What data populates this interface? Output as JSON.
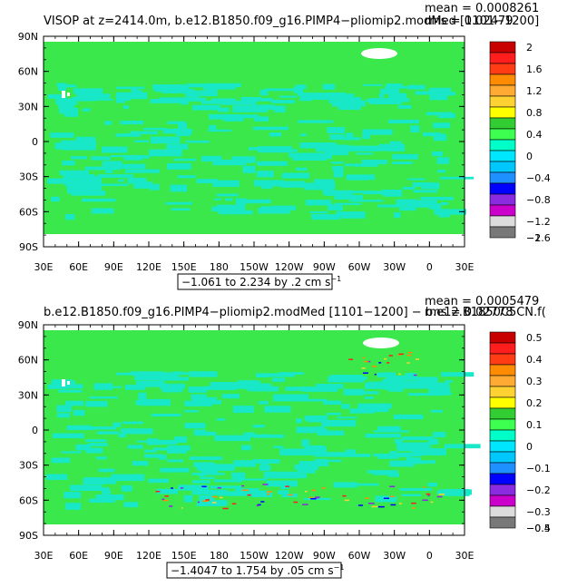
{
  "panels": [
    {
      "title": "VISOP at z=2414.0m, b.e12.B1850.f09_g16.PIMP4−pliomip2.modMed [1101−1200]",
      "mean_label": "mean = 0.0008261",
      "rms_label": "rms = 0.02479",
      "range_note": "−1.061 to 2.234 by .2 cm s",
      "range_unit_exp": "−1",
      "colorbar_labels": [
        "2",
        "1.6",
        "1.2",
        "0.8",
        "0.4",
        "0",
        "−0.4",
        "−0.8",
        "−1.2",
        "−1.6",
        "−2"
      ]
    },
    {
      "title": "b.e12.B1850.f09_g16.PIMP4−pliomip2.modMed [1101−1200] − b.e12.B1850C5CN.f(",
      "mean_label": "mean = 0.0005479",
      "rms_label": "rms = 0.02778",
      "range_note": "−1.4047 to 1.754 by .05 cm s",
      "range_unit_exp": "−1",
      "colorbar_labels": [
        "0.5",
        "0.4",
        "0.3",
        "0.2",
        "0.1",
        "0",
        "−0.1",
        "−0.2",
        "−0.3",
        "−0.4",
        "−0.5"
      ]
    }
  ],
  "axes": {
    "lat_labels": [
      "90N",
      "60N",
      "30N",
      "0",
      "30S",
      "60S",
      "90S"
    ],
    "lon_labels": [
      "30E",
      "60E",
      "90E",
      "120E",
      "150E",
      "180",
      "150W",
      "120W",
      "90W",
      "60W",
      "30W",
      "0",
      "30E"
    ]
  },
  "colors": {
    "colorbar": [
      "#c80000",
      "#ff1e1e",
      "#ff3c14",
      "#ff8c00",
      "#ffaa32",
      "#ffd232",
      "#ffff00",
      "#32cd32",
      "#3cff50",
      "#00ffc8",
      "#00e6ff",
      "#00c8ff",
      "#1e90ff",
      "#0000ff",
      "#8a2be2",
      "#cc00cc",
      "#dcdcdc",
      "#787878"
    ],
    "ocean_main": "#3ae84c",
    "ocean_alt": "#18e8c8",
    "land": "#ffffff"
  }
}
